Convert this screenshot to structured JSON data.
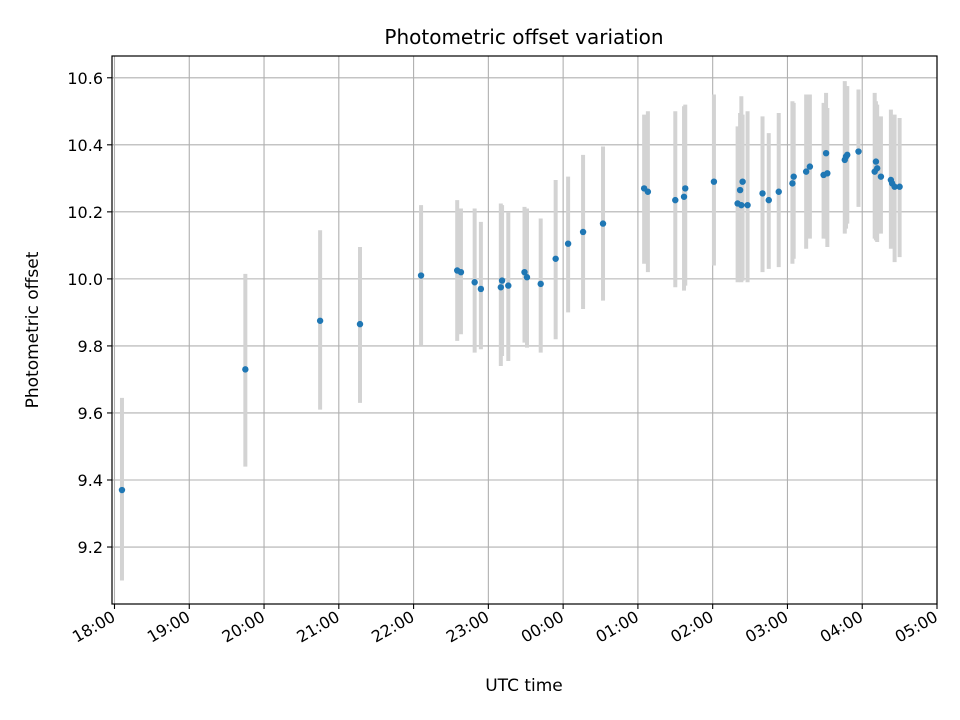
{
  "chart_data": {
    "type": "scatter",
    "title": "Photometric offset variation",
    "xlabel": "UTC time",
    "ylabel": "Photometric offset",
    "grid": true,
    "x_ticks": [
      "18:00",
      "19:00",
      "20:00",
      "21:00",
      "22:00",
      "23:00",
      "00:00",
      "01:00",
      "02:00",
      "03:00",
      "04:00",
      "05:00"
    ],
    "xlim": [
      "17:58",
      "05:00"
    ],
    "y_ticks": [
      "9.2",
      "9.4",
      "9.6",
      "9.8",
      "10.0",
      "10.2",
      "10.4",
      "10.6"
    ],
    "ylim": [
      9.03,
      10.665
    ],
    "colors": {
      "points": "#1f77b4",
      "errorbars": "#d3d3d3",
      "grid": "#b0b0b0"
    },
    "series": [
      {
        "x": [
          "18:06",
          "19:45",
          "20:45",
          "21:17",
          "22:06",
          "22:35",
          "22:38",
          "22:49",
          "22:54",
          "23:10",
          "23:11",
          "23:16",
          "23:29",
          "23:31",
          "23:42",
          "23:54",
          "24:04",
          "24:16",
          "24:32",
          "25:05",
          "25:08",
          "25:30",
          "25:37",
          "25:38",
          "26:01",
          "26:20",
          "26:22",
          "26:23",
          "26:24",
          "26:28",
          "26:40",
          "26:45",
          "26:53",
          "27:04",
          "27:05",
          "27:15",
          "27:18",
          "27:29",
          "27:31",
          "27:32",
          "27:46",
          "27:47",
          "27:48",
          "27:57",
          "28:10",
          "28:11",
          "28:12",
          "28:15",
          "28:23",
          "28:24",
          "28:26",
          "28:30"
        ],
        "y": [
          9.37,
          9.73,
          9.875,
          9.865,
          10.01,
          10.025,
          10.02,
          9.99,
          9.97,
          9.975,
          9.995,
          9.98,
          10.02,
          10.005,
          9.985,
          10.06,
          10.105,
          10.14,
          10.165,
          10.27,
          10.26,
          10.235,
          10.245,
          10.27,
          10.29,
          10.225,
          10.265,
          10.22,
          10.29,
          10.22,
          10.255,
          10.235,
          10.26,
          10.285,
          10.305,
          10.32,
          10.335,
          10.31,
          10.375,
          10.315,
          10.355,
          10.365,
          10.37,
          10.38,
          10.32,
          10.35,
          10.33,
          10.305,
          10.295,
          10.285,
          10.275,
          10.275
        ],
        "yerr_low": [
          9.1,
          9.44,
          9.61,
          9.63,
          9.8,
          9.815,
          9.835,
          9.78,
          9.79,
          9.74,
          9.77,
          9.755,
          9.81,
          9.795,
          9.78,
          9.82,
          9.9,
          9.91,
          9.935,
          10.045,
          10.02,
          9.975,
          9.965,
          9.98,
          10.04,
          9.99,
          10.0,
          9.99,
          9.995,
          9.99,
          10.02,
          10.03,
          10.035,
          10.045,
          10.06,
          10.09,
          10.12,
          10.12,
          10.12,
          10.095,
          10.135,
          10.15,
          10.165,
          10.215,
          10.12,
          10.115,
          10.11,
          10.135,
          10.09,
          10.095,
          10.05,
          10.065
        ],
        "yerr_high": [
          9.645,
          10.015,
          10.145,
          10.095,
          10.22,
          10.235,
          10.21,
          10.21,
          10.17,
          10.225,
          10.22,
          10.2,
          10.215,
          10.21,
          10.18,
          10.295,
          10.305,
          10.37,
          10.395,
          10.49,
          10.5,
          10.5,
          10.515,
          10.52,
          10.55,
          10.455,
          10.495,
          10.545,
          10.49,
          10.5,
          10.485,
          10.435,
          10.495,
          10.53,
          10.525,
          10.55,
          10.55,
          10.525,
          10.555,
          10.51,
          10.59,
          10.575,
          10.575,
          10.565,
          10.555,
          10.53,
          10.52,
          10.485,
          10.505,
          10.485,
          10.49,
          10.48
        ]
      }
    ]
  }
}
